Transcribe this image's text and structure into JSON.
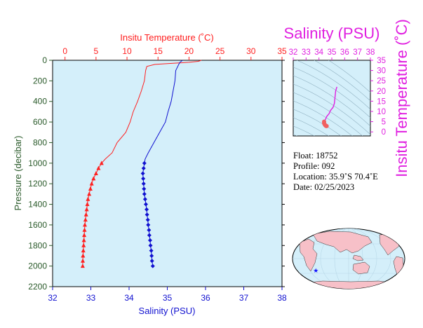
{
  "colors": {
    "temperature": "#ff2020",
    "salinity": "#1010d0",
    "pressure_axis": "#2a5a2a",
    "ts_axes": "#e020e0",
    "plot_bg": "#d4effa",
    "land": "#f7c0c8"
  },
  "chart_data": [
    {
      "type": "line",
      "top_axis": {
        "label": "Insitu Temperature (˚C)",
        "range": [
          -2,
          35
        ],
        "ticks": [
          0,
          5,
          10,
          15,
          20,
          25,
          30,
          35
        ]
      },
      "bottom_axis": {
        "label": "Salinity (PSU)",
        "range": [
          32,
          38
        ],
        "ticks": [
          32,
          33,
          34,
          35,
          36,
          37,
          38
        ]
      },
      "left_axis": {
        "label": "Pressure (decibar)",
        "range": [
          0,
          2200
        ],
        "inverted": true,
        "ticks": [
          0,
          200,
          400,
          600,
          800,
          1000,
          1200,
          1400,
          1600,
          1800,
          2000,
          2200
        ]
      },
      "series": [
        {
          "key": "temperature",
          "axis": "top",
          "profile": [
            [
              22.0,
              0
            ],
            [
              21.5,
              10
            ],
            [
              20.0,
              20
            ],
            [
              14.5,
              40
            ],
            [
              13.2,
              60
            ],
            [
              13.0,
              100
            ],
            [
              12.8,
              200
            ],
            [
              12.3,
              300
            ],
            [
              11.7,
              400
            ],
            [
              11.0,
              500
            ],
            [
              10.5,
              600
            ],
            [
              9.8,
              700
            ],
            [
              8.4,
              800
            ],
            [
              7.6,
              900
            ],
            [
              6.5,
              960
            ],
            [
              5.9,
              1000
            ]
          ],
          "markers": [
            [
              5.9,
              1000
            ],
            [
              5.4,
              1050
            ],
            [
              5.0,
              1100
            ],
            [
              4.6,
              1150
            ],
            [
              4.3,
              1200
            ],
            [
              4.1,
              1250
            ],
            [
              3.9,
              1300
            ],
            [
              3.7,
              1350
            ],
            [
              3.6,
              1400
            ],
            [
              3.5,
              1450
            ],
            [
              3.4,
              1500
            ],
            [
              3.3,
              1550
            ],
            [
              3.2,
              1600
            ],
            [
              3.15,
              1650
            ],
            [
              3.1,
              1700
            ],
            [
              3.05,
              1750
            ],
            [
              3.0,
              1800
            ],
            [
              2.95,
              1850
            ],
            [
              2.9,
              1900
            ],
            [
              2.87,
              1950
            ],
            [
              2.85,
              2000
            ]
          ]
        },
        {
          "key": "salinity",
          "axis": "bottom",
          "profile": [
            [
              35.4,
              0
            ],
            [
              35.33,
              20
            ],
            [
              35.3,
              40
            ],
            [
              35.22,
              100
            ],
            [
              35.2,
              200
            ],
            [
              35.15,
              300
            ],
            [
              35.1,
              400
            ],
            [
              35.02,
              500
            ],
            [
              34.95,
              600
            ],
            [
              34.8,
              700
            ],
            [
              34.65,
              800
            ],
            [
              34.5,
              900
            ],
            [
              34.42,
              960
            ],
            [
              34.4,
              1000
            ]
          ],
          "markers": [
            [
              34.4,
              1000
            ],
            [
              34.38,
              1050
            ],
            [
              34.36,
              1100
            ],
            [
              34.37,
              1150
            ],
            [
              34.38,
              1200
            ],
            [
              34.39,
              1250
            ],
            [
              34.4,
              1300
            ],
            [
              34.42,
              1350
            ],
            [
              34.44,
              1400
            ],
            [
              34.46,
              1450
            ],
            [
              34.47,
              1500
            ],
            [
              34.49,
              1550
            ],
            [
              34.5,
              1600
            ],
            [
              34.52,
              1650
            ],
            [
              34.53,
              1700
            ],
            [
              34.55,
              1750
            ],
            [
              34.56,
              1800
            ],
            [
              34.58,
              1850
            ],
            [
              34.59,
              1900
            ],
            [
              34.6,
              1950
            ],
            [
              34.62,
              2000
            ]
          ]
        }
      ]
    },
    {
      "type": "scatter",
      "title": "Salinity (PSU)",
      "ylabel": "Insitu Temperature (˚C)",
      "x_ticks": [
        32,
        33,
        34,
        35,
        36,
        37,
        38
      ],
      "y_ticks": [
        0,
        5,
        10,
        15,
        20,
        25,
        30,
        35
      ],
      "xlim": [
        32,
        38
      ],
      "ylim": [
        -2,
        35
      ],
      "points": [
        [
          35.4,
          22
        ],
        [
          35.3,
          20
        ],
        [
          35.2,
          14
        ],
        [
          35.1,
          12
        ],
        [
          34.9,
          10.5
        ],
        [
          34.8,
          9
        ],
        [
          34.6,
          7.5
        ],
        [
          34.5,
          6
        ],
        [
          34.4,
          5
        ],
        [
          34.4,
          4.2
        ],
        [
          34.45,
          3.6
        ],
        [
          34.5,
          3.2
        ],
        [
          34.55,
          2.9
        ],
        [
          34.6,
          2.85
        ]
      ]
    }
  ],
  "info": {
    "float": "Float:  18752",
    "profile": "Profile:  092",
    "location": "Location:  35.9˚S  70.4˚E",
    "date": "Date:  02/25/2023"
  },
  "map": {
    "float_position": {
      "lat": -35.9,
      "lon": 70.4
    },
    "marker_color": "#1010ff"
  }
}
